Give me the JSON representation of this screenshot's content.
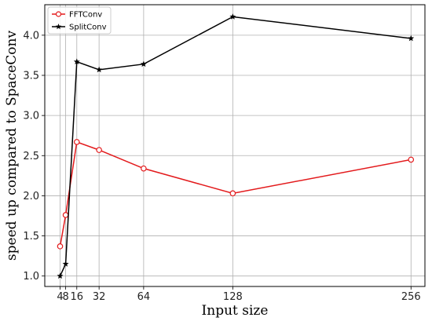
{
  "chart_data": {
    "type": "line",
    "xlabel": "Input size",
    "ylabel": "speed up compared to SpaceConv",
    "x_ticks": [
      4,
      8,
      16,
      32,
      64,
      128,
      256
    ],
    "x_tick_labels": [
      "4",
      "8",
      "16",
      "32",
      "64",
      "128",
      "256"
    ],
    "y_ticks": [
      1.0,
      1.5,
      2.0,
      2.5,
      3.0,
      3.5,
      4.0
    ],
    "y_tick_labels": [
      "1.0",
      "1.5",
      "2.0",
      "2.5",
      "3.0",
      "3.5",
      "4.0"
    ],
    "xlim": [
      -7,
      266
    ],
    "ylim": [
      0.87,
      4.38
    ],
    "grid": true,
    "legend_position": "top-left",
    "series": [
      {
        "name": "FFTConv",
        "color": "#e31a1c",
        "marker": "open-circle",
        "x": [
          4,
          8,
          16,
          32,
          64,
          128,
          256
        ],
        "y": [
          1.37,
          1.76,
          2.67,
          2.57,
          2.34,
          2.03,
          2.45
        ]
      },
      {
        "name": "SplitConv",
        "color": "#000000",
        "marker": "star",
        "x": [
          4,
          8,
          16,
          32,
          64,
          128,
          256
        ],
        "y": [
          1.0,
          1.15,
          3.67,
          3.57,
          3.64,
          4.23,
          3.96
        ]
      }
    ]
  }
}
